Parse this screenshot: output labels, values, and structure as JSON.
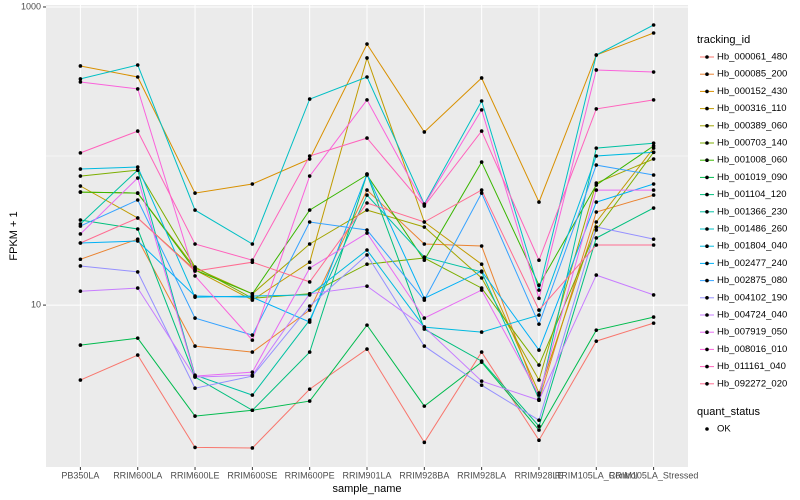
{
  "chart_data": {
    "type": "line",
    "x_label": "sample_name",
    "y_label": "FPKM + 1",
    "log_y": true,
    "grid": true,
    "legend_title": "tracking_id",
    "shape_legend": {
      "title": "quant_status",
      "labels": [
        "OK"
      ]
    },
    "categories": [
      "PB350LA",
      "RRIM600LA",
      "RRIM600LE",
      "RRIM600SE",
      "RRIM600PE",
      "RRIM901LA",
      "RRIM928BA",
      "RRIM928LA",
      "RRIM928LE",
      "RRIM105LA_Control",
      "RRIM105LA_Stressed"
    ],
    "ylim": [
      0.82,
      1031
    ],
    "yticks": [
      10,
      1000
    ],
    "y_minor_ticks": [
      100
    ],
    "series": [
      {
        "name": "Hb_000061_480",
        "color": "#F8766D",
        "values": [
          3.14,
          4.62,
          1.11,
          1.1,
          2.73,
          5.07,
          1.2,
          4.84,
          1.24,
          5.73,
          7.57
        ]
      },
      {
        "name": "Hb_000085_200",
        "color": "#EA8331",
        "values": [
          20.3,
          27.7,
          5.31,
          4.84,
          9.26,
          59.1,
          25.7,
          24.9,
          2.3,
          42.1,
          54.7
        ]
      },
      {
        "name": "Hb_000152_430",
        "color": "#D89000",
        "values": [
          402,
          339,
          56.4,
          64.9,
          95.5,
          564,
          145,
          334,
          49.1,
          476,
          669
        ]
      },
      {
        "name": "Hb_000316_110",
        "color": "#C09B00",
        "values": [
          62.9,
          38.4,
          17.2,
          10.8,
          19.4,
          455,
          36.1,
          18.8,
          2.57,
          36.1,
          113
        ]
      },
      {
        "name": "Hb_000389_060",
        "color": "#A3A500",
        "values": [
          57.3,
          56.4,
          17.7,
          11.9,
          25.7,
          43.4,
          33.4,
          15.2,
          3.14,
          65.9,
          95.5
        ]
      },
      {
        "name": "Hb_000703_140",
        "color": "#7CAE00",
        "values": [
          73.4,
          80.5,
          18.0,
          11.1,
          11.9,
          18.8,
          20.7,
          13.0,
          3.96,
          31.9,
          106
        ]
      },
      {
        "name": "Hb_001008_060",
        "color": "#39B600",
        "values": [
          57.3,
          56.4,
          17.2,
          11.9,
          43.4,
          74.6,
          20.0,
          91.1,
          13.6,
          63.9,
          117
        ]
      },
      {
        "name": "Hb_001019_090",
        "color": "#00BB4E",
        "values": [
          5.39,
          6.0,
          1.8,
          1.97,
          2.27,
          7.34,
          2.1,
          4.14,
          1.45,
          6.79,
          8.31
        ]
      },
      {
        "name": "Hb_001104_120",
        "color": "#00BF7D",
        "values": [
          37.2,
          32.4,
          3.29,
          1.97,
          4.84,
          75.7,
          6.9,
          4.21,
          1.54,
          28.2,
          44.8
        ]
      },
      {
        "name": "Hb_001366_230",
        "color": "#00C1A3",
        "values": [
          35.0,
          80.5,
          3.39,
          2.49,
          7.93,
          54.7,
          21.0,
          16.7,
          2.34,
          113,
          122
        ]
      },
      {
        "name": "Hb_001486_260",
        "color": "#00BFC4",
        "values": [
          329,
          408,
          43.4,
          25.7,
          241,
          339,
          47.6,
          234,
          12.6,
          476,
          757
        ]
      },
      {
        "name": "Hb_001804_040",
        "color": "#00BAE0",
        "values": [
          81.8,
          84.4,
          11.3,
          11.5,
          11.7,
          23.4,
          7.12,
          6.59,
          8.57,
          100,
          106
        ]
      },
      {
        "name": "Hb_002477_240",
        "color": "#00B0F6",
        "values": [
          26.1,
          26.9,
          11.5,
          11.3,
          7.69,
          75.7,
          11.1,
          16.9,
          4.99,
          49.1,
          64.9
        ]
      },
      {
        "name": "Hb_002875_080",
        "color": "#35A2FF",
        "values": [
          33.9,
          50.7,
          8.18,
          6.29,
          36.1,
          31.9,
          10.8,
          56.4,
          7.45,
          87.0,
          74.6
        ]
      },
      {
        "name": "Hb_004102_190",
        "color": "#9590FF",
        "values": [
          18.3,
          16.7,
          2.77,
          3.34,
          9.85,
          21.7,
          5.31,
          2.9,
          1.69,
          33.4,
          27.7
        ]
      },
      {
        "name": "Hb_004724_040",
        "color": "#C77CFF",
        "values": [
          12.4,
          13.0,
          3.29,
          3.39,
          11.9,
          13.4,
          7.12,
          3.09,
          2.3,
          15.9,
          11.7
        ]
      },
      {
        "name": "Hb_007919_050",
        "color": "#E76BF3",
        "values": [
          30.0,
          71.2,
          3.34,
          3.55,
          17.7,
          30.4,
          8.18,
          12.6,
          2.49,
          59.1,
          59.1
        ]
      },
      {
        "name": "Hb_008016_010",
        "color": "#FA62DB",
        "values": [
          314,
          282,
          15.7,
          5.82,
          73.4,
          238,
          46.9,
          204,
          11.1,
          378,
          366
        ]
      },
      {
        "name": "Hb_011161_040",
        "color": "#FF62BC",
        "values": [
          105,
          147,
          25.7,
          20.0,
          100,
          132,
          46.2,
          147,
          20.0,
          207,
          238
        ]
      },
      {
        "name": "Hb_092272_020",
        "color": "#FF6C91",
        "values": [
          26.1,
          38.4,
          16.9,
          19.4,
          14.3,
          48.4,
          36.1,
          59.1,
          9.26,
          25.3,
          25.3
        ]
      }
    ]
  }
}
